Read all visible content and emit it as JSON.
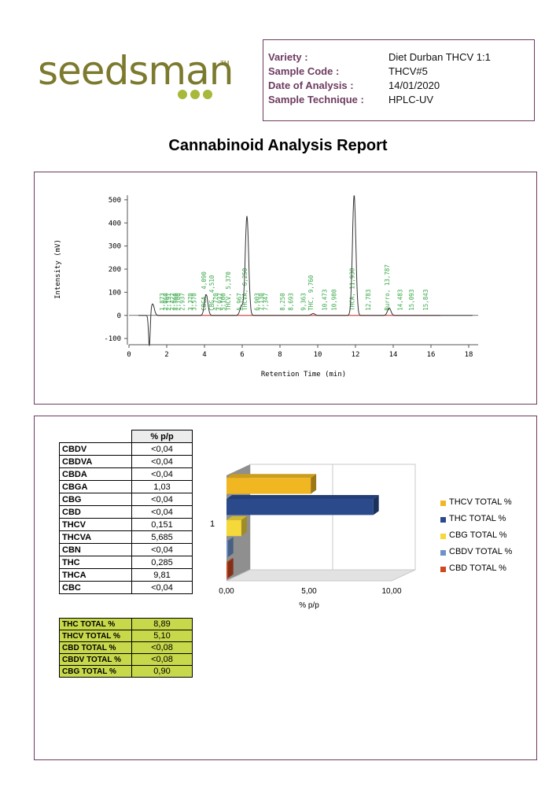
{
  "brand": {
    "name": "seedsman",
    "tm": "TM"
  },
  "info": [
    {
      "label": "Variety :",
      "value": "Diet Durban THCV 1:1"
    },
    {
      "label": "Sample Code :",
      "value": "THCV#5"
    },
    {
      "label": "Date of Analysis :",
      "value": "14/01/2020"
    },
    {
      "label": "Sample Technique :",
      "value": "HPLC-UV"
    }
  ],
  "title": "Cannabinoid Analysis Report",
  "chromatogram": {
    "type": "line",
    "xlabel": "Retention Time (min)",
    "ylabel": "Intensity (mV)",
    "xlim": [
      0,
      18.5
    ],
    "ylim": [
      -120,
      520
    ],
    "xticks": [
      0,
      2,
      4,
      6,
      8,
      10,
      12,
      14,
      16,
      18
    ],
    "yticks": [
      -100,
      0,
      100,
      200,
      300,
      400,
      500
    ],
    "peaks": [
      {
        "x": 1.25,
        "h": 50
      },
      {
        "x": 4.09,
        "h": 90
      },
      {
        "x": 5.967,
        "h": 40
      },
      {
        "x": 6.25,
        "h": 430
      },
      {
        "x": 9.76,
        "h": 8
      },
      {
        "x": 11.93,
        "h": 520
      },
      {
        "x": 13.787,
        "h": 32
      }
    ],
    "dip": {
      "x": 1.08,
      "h": -140
    },
    "annotations": [
      {
        "x": 1.873,
        "text": "1,873"
      },
      {
        "x": 2.06,
        "text": "2,060"
      },
      {
        "x": 2.2,
        "text": "2,197"
      },
      {
        "x": 2.427,
        "text": "2,427"
      },
      {
        "x": 2.56,
        "text": "2,560"
      },
      {
        "x": 2.7,
        "text": "2,700"
      },
      {
        "x": 2.937,
        "text": "2,937"
      },
      {
        "x": 3.37,
        "text": "3,370"
      },
      {
        "x": 3.57,
        "text": "3,570"
      },
      {
        "x": 4.09,
        "text": "CBGA, 4,090"
      },
      {
        "x": 4.5,
        "text": "CBG, 4,510"
      },
      {
        "x": 4.7,
        "text": "4,720"
      },
      {
        "x": 4.93,
        "text": "4,937"
      },
      {
        "x": 5.1,
        "text": "5,100"
      },
      {
        "x": 5.37,
        "text": "THCV, 5,370"
      },
      {
        "x": 5.967,
        "text": "5,967"
      },
      {
        "x": 6.25,
        "text": "THCVA, 6,250"
      },
      {
        "x": 6.903,
        "text": "6,903"
      },
      {
        "x": 7.13,
        "text": "7,130"
      },
      {
        "x": 7.347,
        "text": "7,347"
      },
      {
        "x": 8.25,
        "text": "8,250"
      },
      {
        "x": 8.693,
        "text": "8,693"
      },
      {
        "x": 9.363,
        "text": "9,363"
      },
      {
        "x": 9.76,
        "text": "THC, 9,760"
      },
      {
        "x": 10.473,
        "text": "10,473"
      },
      {
        "x": 10.98,
        "text": "10,980"
      },
      {
        "x": 11.93,
        "text": "THCA, 11,930"
      },
      {
        "x": 12.783,
        "text": "12,783"
      },
      {
        "x": 13.787,
        "text": "Burro, 13,787"
      },
      {
        "x": 14.483,
        "text": "14,483"
      },
      {
        "x": 15.093,
        "text": "15,093"
      },
      {
        "x": 15.843,
        "text": "15,843"
      }
    ]
  },
  "table": {
    "header": "% p/p",
    "rows": [
      {
        "name": "CBDV",
        "value": "<0,04"
      },
      {
        "name": "CBDVA",
        "value": "<0,04"
      },
      {
        "name": "CBDA",
        "value": "<0,04"
      },
      {
        "name": "CBGA",
        "value": "1,03"
      },
      {
        "name": "CBG",
        "value": "<0,04"
      },
      {
        "name": "CBD",
        "value": "<0,04"
      },
      {
        "name": "THCV",
        "value": "0,151"
      },
      {
        "name": "THCVA",
        "value": "5,685"
      },
      {
        "name": "CBN",
        "value": "<0,04"
      },
      {
        "name": "THC",
        "value": "0,285"
      },
      {
        "name": "THCA",
        "value": "9,81"
      },
      {
        "name": "CBC",
        "value": "<0,04"
      }
    ]
  },
  "totals": [
    {
      "name": "THC TOTAL %",
      "value": "8,89"
    },
    {
      "name": "THCV TOTAL %",
      "value": "5,10"
    },
    {
      "name": "CBD TOTAL %",
      "value": "<0,08"
    },
    {
      "name": "CBDV TOTAL %",
      "value": "<0,08"
    },
    {
      "name": "CBG TOTAL %",
      "value": "0,90"
    }
  ],
  "chart_data": {
    "type": "bar",
    "orientation": "horizontal",
    "categories": [
      "1"
    ],
    "xlabel": "% p/p",
    "xlim": [
      0,
      10
    ],
    "xticks": [
      "0,00",
      "5,00",
      "10,00"
    ],
    "legend_position": "right",
    "series": [
      {
        "name": "THCV TOTAL %",
        "values": [
          5.1
        ],
        "color": "#f0b722"
      },
      {
        "name": "THC TOTAL %",
        "values": [
          8.89
        ],
        "color": "#2a4a8c"
      },
      {
        "name": "CBG TOTAL %",
        "values": [
          0.9
        ],
        "color": "#f5d83a"
      },
      {
        "name": "CBDV TOTAL %",
        "values": [
          0.08
        ],
        "color": "#6f93c8"
      },
      {
        "name": "CBD TOTAL %",
        "values": [
          0.08
        ],
        "color": "#cc4a22"
      }
    ]
  }
}
